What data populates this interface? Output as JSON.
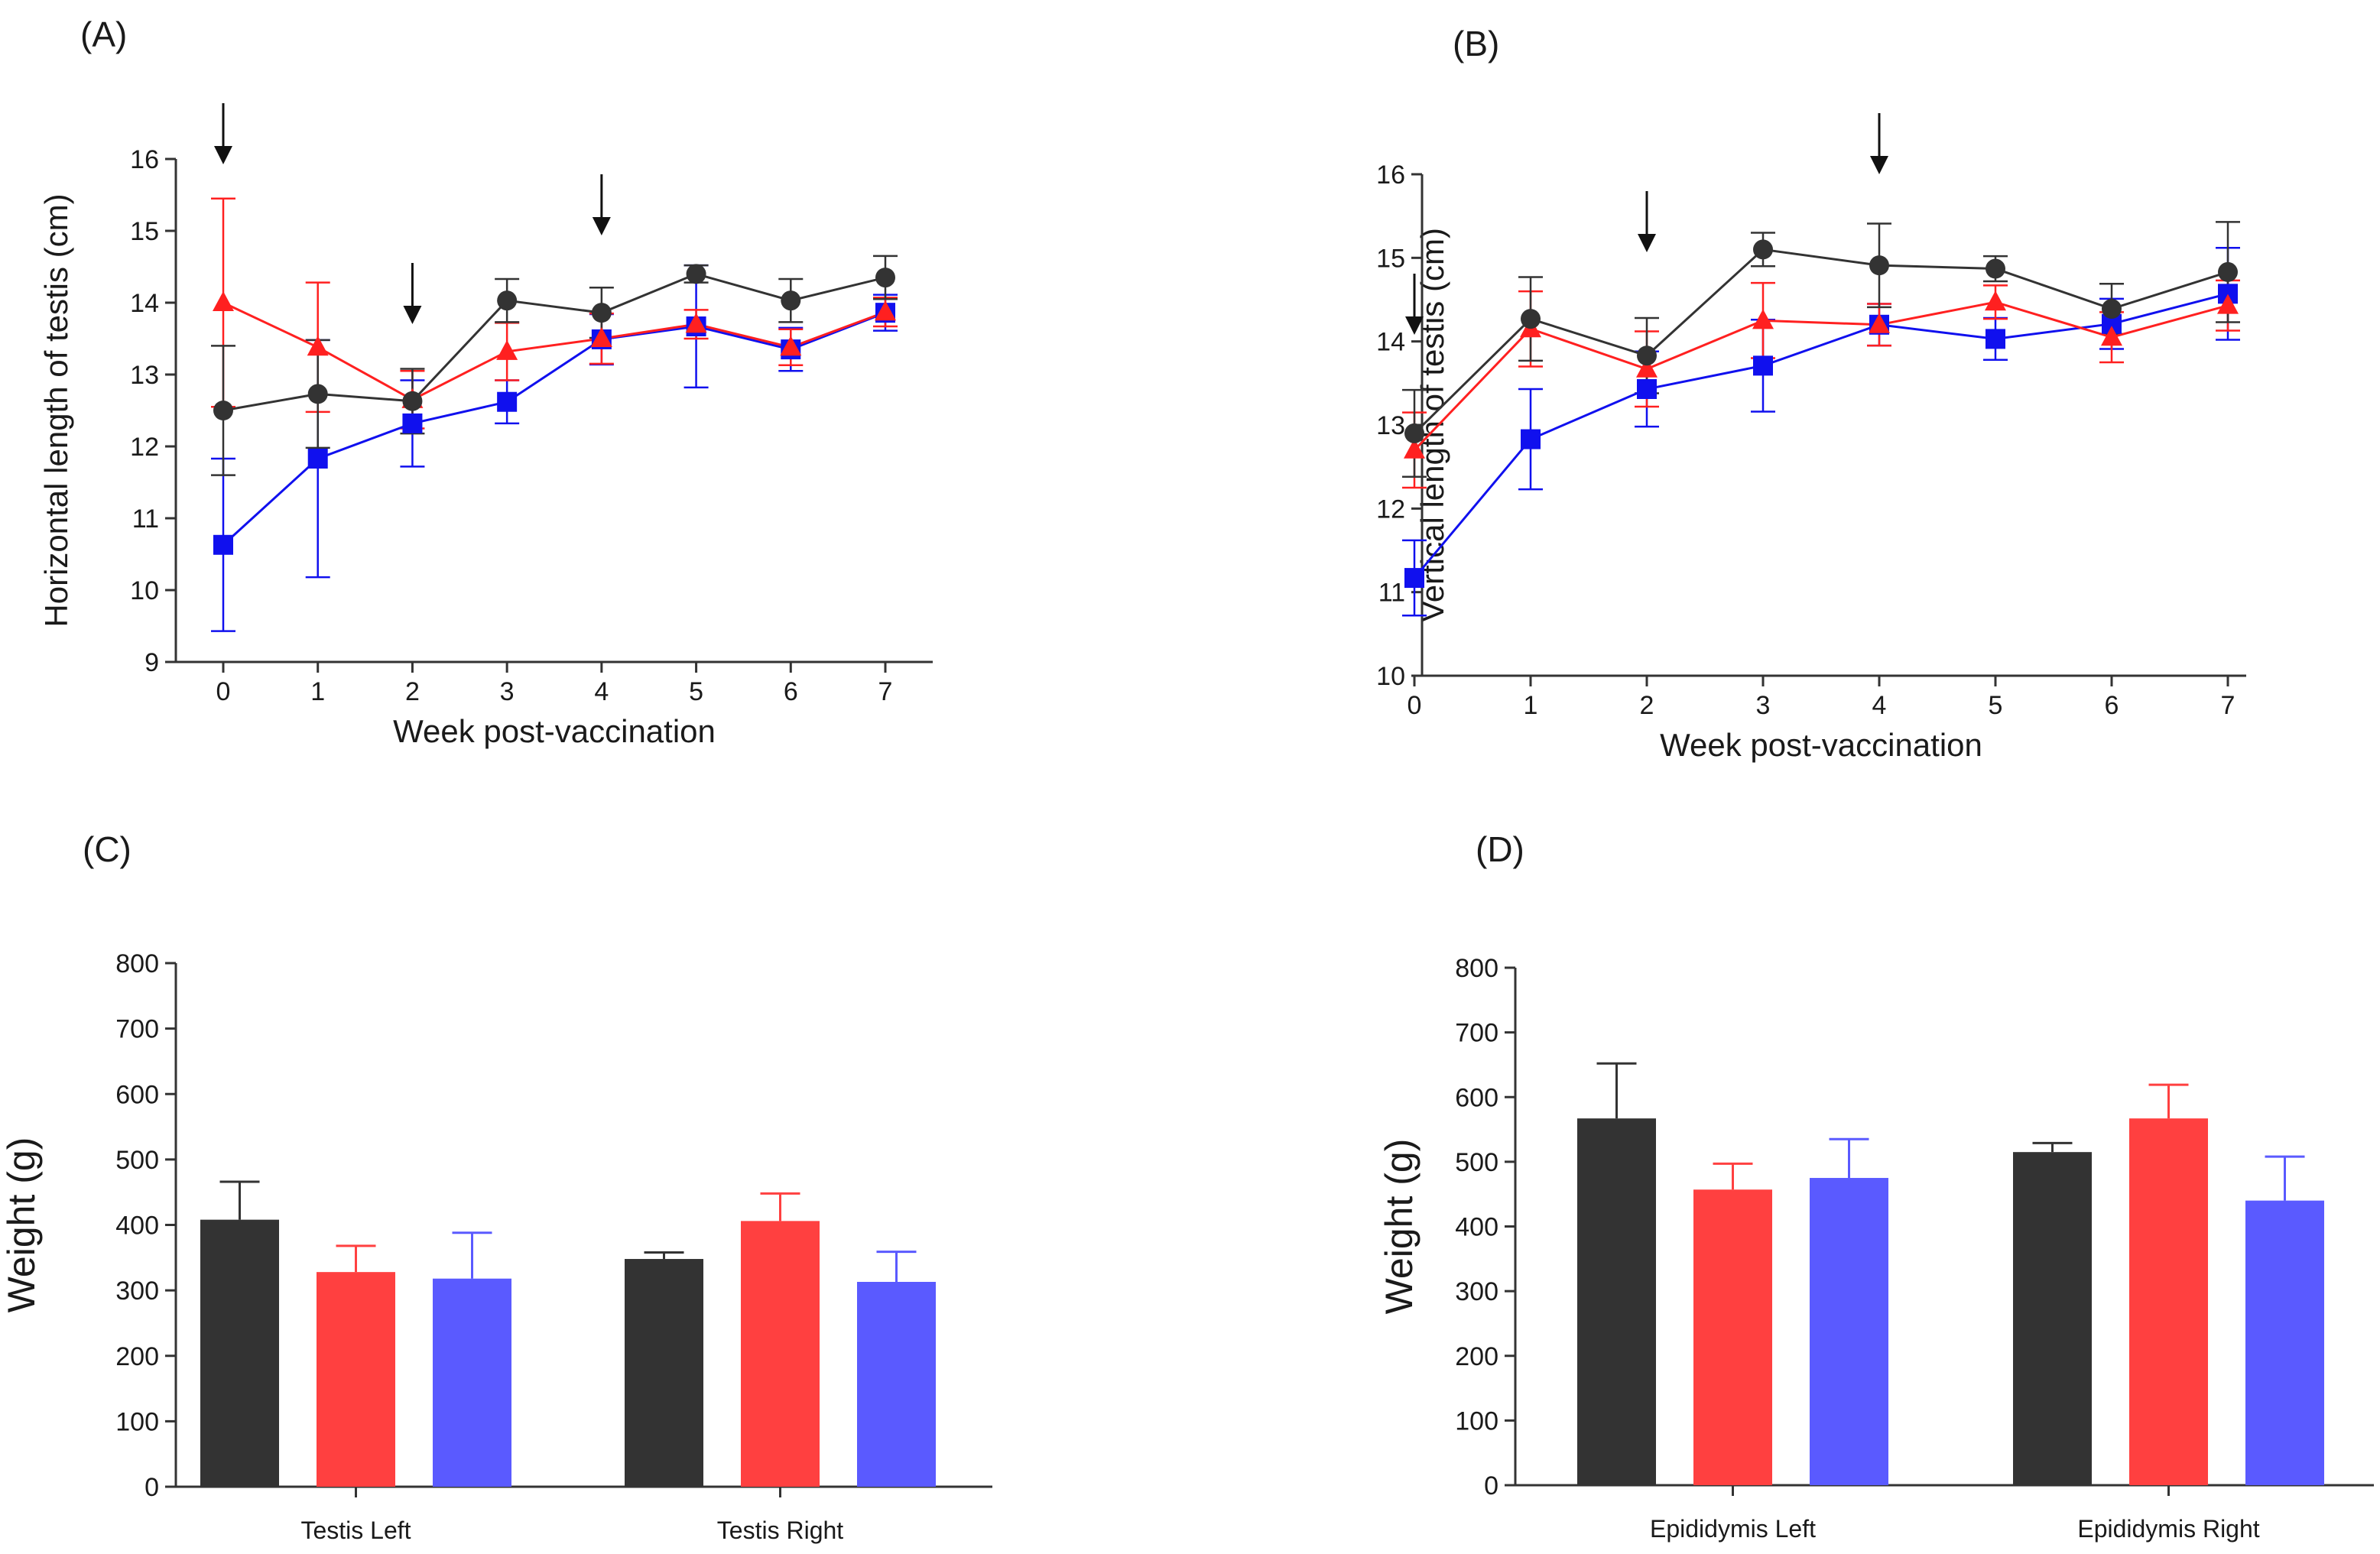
{
  "chart_data": [
    {
      "id": "A",
      "panel_label": "(A)",
      "type": "line",
      "xlabel": "Week post-vaccination",
      "ylabel": "Horizontal length of testis (cm)",
      "x": [
        0,
        1,
        2,
        3,
        4,
        5,
        6,
        7
      ],
      "xticks": [
        "0",
        "1",
        "2",
        "3",
        "4",
        "5",
        "6",
        "7"
      ],
      "ylim": [
        9,
        16
      ],
      "yticks": [
        "9",
        "10",
        "11",
        "12",
        "13",
        "14",
        "15",
        "16"
      ],
      "arrows_at_week": [
        0,
        2,
        4
      ],
      "series": [
        {
          "name": "black",
          "color": "#333333",
          "marker": "circle",
          "values": [
            12.5,
            12.73,
            12.63,
            14.03,
            13.86,
            14.4,
            14.03,
            14.35
          ],
          "err": [
            0.9,
            0.75,
            0.45,
            0.3,
            0.35,
            0.12,
            0.3,
            0.3
          ]
        },
        {
          "name": "red",
          "color": "#ff2020",
          "marker": "triangle",
          "values": [
            14.0,
            13.38,
            12.65,
            13.32,
            13.5,
            13.7,
            13.38,
            13.87
          ],
          "err": [
            1.45,
            0.9,
            0.4,
            0.4,
            0.35,
            0.2,
            0.25,
            0.2
          ]
        },
        {
          "name": "blue",
          "color": "#1010ee",
          "marker": "square",
          "values": [
            10.63,
            11.83,
            12.32,
            12.62,
            13.49,
            13.67,
            13.35,
            13.86
          ],
          "err": [
            1.2,
            1.65,
            0.6,
            0.3,
            0.35,
            0.85,
            0.3,
            0.25
          ]
        }
      ]
    },
    {
      "id": "B",
      "panel_label": "(B)",
      "type": "line",
      "xlabel": "Week post-vaccination",
      "ylabel": "Vertical length of testis (cm)",
      "x": [
        0,
        1,
        2,
        3,
        4,
        5,
        6,
        7
      ],
      "xticks": [
        "0",
        "1",
        "2",
        "3",
        "4",
        "5",
        "6",
        "7"
      ],
      "ylim": [
        10,
        16
      ],
      "yticks": [
        "10",
        "11",
        "12",
        "13",
        "14",
        "15",
        "16"
      ],
      "arrows_at_week": [
        0,
        2,
        4
      ],
      "series": [
        {
          "name": "black",
          "color": "#333333",
          "marker": "circle",
          "values": [
            12.9,
            14.27,
            13.83,
            15.1,
            14.91,
            14.87,
            14.39,
            14.83
          ],
          "err": [
            0.52,
            0.5,
            0.45,
            0.2,
            0.5,
            0.15,
            0.3,
            0.6
          ]
        },
        {
          "name": "red",
          "color": "#ff2020",
          "marker": "triangle",
          "values": [
            12.7,
            14.15,
            13.67,
            14.25,
            14.2,
            14.47,
            14.05,
            14.43
          ],
          "err": [
            0.45,
            0.45,
            0.45,
            0.45,
            0.25,
            0.2,
            0.3,
            0.3
          ]
        },
        {
          "name": "blue",
          "color": "#1010ee",
          "marker": "square",
          "values": [
            11.17,
            12.83,
            13.43,
            13.71,
            14.2,
            14.03,
            14.21,
            14.57
          ],
          "err": [
            0.45,
            0.6,
            0.45,
            0.55,
            0.25,
            0.25,
            0.3,
            0.55
          ]
        }
      ]
    },
    {
      "id": "C",
      "panel_label": "(C)",
      "type": "bar",
      "ylabel": "Weight (g)",
      "categories": [
        "Testis Left",
        "Testis Right"
      ],
      "ylim": [
        0,
        800
      ],
      "yticks": [
        "0",
        "100",
        "200",
        "300",
        "400",
        "500",
        "600",
        "700",
        "800"
      ],
      "series": [
        {
          "name": "black",
          "color": "#333333",
          "values": [
            408,
            348
          ],
          "err": [
            58,
            10
          ]
        },
        {
          "name": "red",
          "color": "#ff4040",
          "values": [
            328,
            406
          ],
          "err": [
            40,
            42
          ]
        },
        {
          "name": "blue",
          "color": "#5a5aff",
          "values": [
            318,
            313
          ],
          "err": [
            70,
            46
          ]
        }
      ]
    },
    {
      "id": "D",
      "panel_label": "(D)",
      "type": "bar",
      "ylabel": "Weight (g)",
      "categories": [
        "Epididymis Left",
        "Epididymis Right"
      ],
      "ylim": [
        0,
        800
      ],
      "yticks": [
        "0",
        "100",
        "200",
        "300",
        "400",
        "500",
        "600",
        "700",
        "800"
      ],
      "series": [
        {
          "name": "black",
          "color": "#333333",
          "values": [
            567,
            515
          ],
          "err": [
            85,
            14
          ]
        },
        {
          "name": "red",
          "color": "#ff4040",
          "values": [
            457,
            567
          ],
          "err": [
            40,
            52
          ]
        },
        {
          "name": "blue",
          "color": "#5a5aff",
          "values": [
            475,
            440
          ],
          "err": [
            60,
            68
          ]
        }
      ]
    }
  ]
}
